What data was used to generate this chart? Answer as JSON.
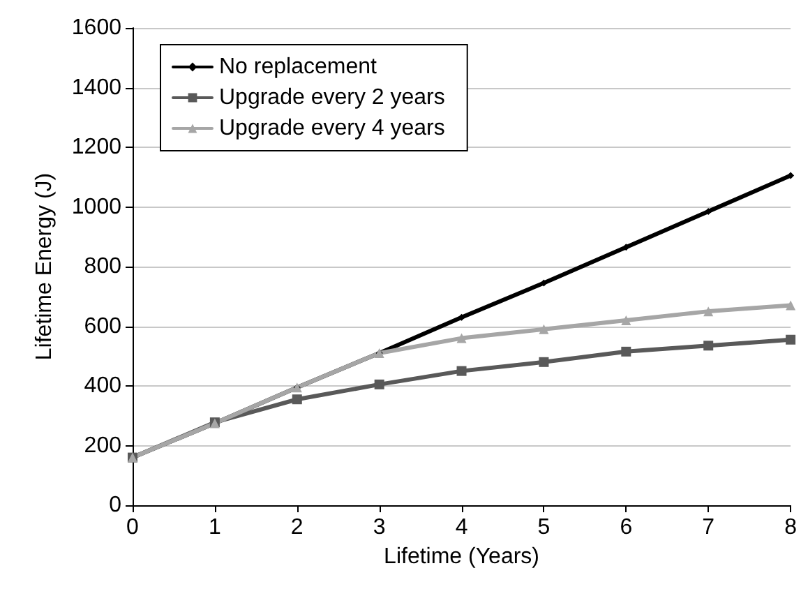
{
  "chart_data": {
    "type": "line",
    "xlabel": "Lifetime (Years)",
    "ylabel": "Lifetime Energy (J)",
    "x": [
      0,
      1,
      2,
      3,
      4,
      5,
      6,
      7,
      8
    ],
    "series": [
      {
        "name": "No replacement",
        "color": "#000000",
        "marker": "diamond",
        "values": [
          160,
          275,
          395,
          510,
          630,
          745,
          865,
          985,
          1105
        ]
      },
      {
        "name": "Upgrade every 2 years",
        "color": "#595959",
        "marker": "square",
        "values": [
          160,
          278,
          355,
          405,
          450,
          480,
          515,
          535,
          555
        ]
      },
      {
        "name": "Upgrade every 4 years",
        "color": "#a6a6a6",
        "marker": "triangle",
        "values": [
          160,
          275,
          395,
          510,
          560,
          590,
          620,
          650,
          670
        ]
      }
    ],
    "xlim": [
      0,
      8
    ],
    "xticks": [
      0,
      1,
      2,
      3,
      4,
      5,
      6,
      7,
      8
    ],
    "ylim": [
      0,
      1600
    ],
    "yticks": [
      0,
      200,
      400,
      600,
      800,
      1000,
      1200,
      1400,
      1600
    ],
    "grid": "y",
    "legend": "top left",
    "line_style": "solid"
  }
}
